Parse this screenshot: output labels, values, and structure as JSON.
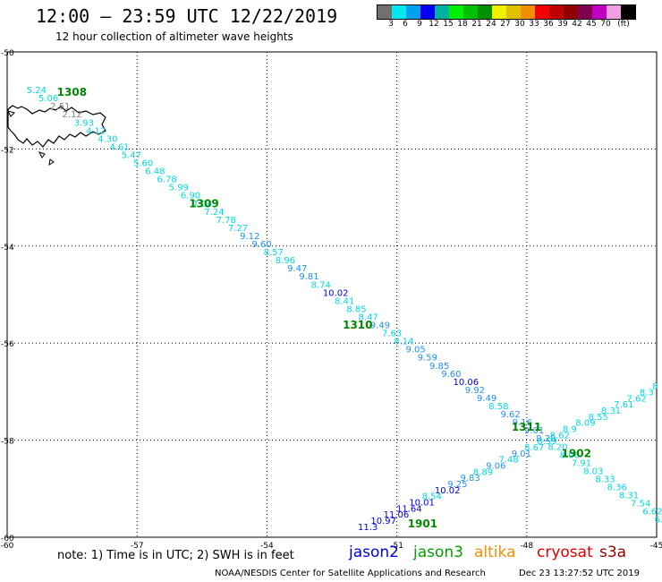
{
  "title": "12:00 – 23:59 UTC 12/22/2019",
  "subtitle": "12 hour collection of altimeter wave heights",
  "colorbar": {
    "colors": [
      "#707070",
      "#00e8f0",
      "#00a0f0",
      "#0000f0",
      "#00b0a0",
      "#00f000",
      "#00c000",
      "#009000",
      "#f0f000",
      "#e0c000",
      "#f09000",
      "#f00000",
      "#c00000",
      "#900000",
      "#800050",
      "#c000c0",
      "#f0a0e0",
      "#000000"
    ],
    "labels": [
      "3",
      "6",
      "9",
      "12",
      "15",
      "18",
      "21",
      "24",
      "27",
      "30",
      "33",
      "36",
      "39",
      "42",
      "45",
      "70",
      "(ft)"
    ]
  },
  "axes": {
    "x_ticks": [
      "-60",
      "-57",
      "-54",
      "-51",
      "-48",
      "-45"
    ],
    "y_ticks": [
      "-50",
      "-52",
      "-54",
      "-56",
      "-58",
      "-60"
    ]
  },
  "chart_data": {
    "type": "map",
    "xlabel": "",
    "ylabel": "",
    "xlim": [
      -60,
      -45
    ],
    "ylim": [
      -60,
      -50
    ],
    "grid": true,
    "passes": [
      {
        "label": "1308",
        "lon": -58.85,
        "lat": -50.9
      },
      {
        "label": "1309",
        "lon": -55.8,
        "lat": -53.2
      },
      {
        "label": "1310",
        "lon": -52.25,
        "lat": -55.7
      },
      {
        "label": "1311",
        "lon": -48.35,
        "lat": -57.8
      },
      {
        "label": "1902",
        "lon": -47.2,
        "lat": -58.35
      },
      {
        "label": "1901",
        "lon": -50.75,
        "lat": -59.8
      }
    ],
    "track_descending": {
      "values": [
        5.24,
        5.06,
        2.51,
        2.12,
        3.93,
        4.12,
        4.3,
        4.61,
        5.47,
        5.6,
        6.48,
        6.78,
        5.99,
        6.9,
        7.04,
        7.24,
        7.78,
        7.27,
        9.12,
        9.6,
        8.57,
        8.96,
        9.47,
        9.81,
        8.74,
        10.02,
        8.41,
        8.85,
        8.47,
        9.49,
        7.63,
        8.14,
        9.05,
        9.59,
        9.85,
        9.6,
        10.06,
        9.92,
        9.49,
        8.58,
        9.62,
        9.16,
        9.01,
        9.2,
        8.2,
        8.06,
        7.91,
        8.03,
        8.33,
        8.36,
        8.31,
        7.54,
        6.62,
        6.4
      ]
    },
    "track_ascending": {
      "values": [
        11.3,
        10.97,
        11.06,
        11.64,
        10.01,
        8.54,
        10.02,
        9.25,
        9.83,
        8.89,
        9.06,
        7.48,
        9.01,
        8.67,
        8.59,
        8.62,
        8.9,
        8.09,
        8.55,
        8.31,
        7.61,
        7.62,
        8.3,
        8
      ]
    }
  },
  "legend": {
    "note": "note:  1) Time is in UTC;  2) SWH is in feet",
    "satellites": [
      {
        "name": "jason2",
        "color": "#0000e0"
      },
      {
        "name": "jason3",
        "color": "#00a000"
      },
      {
        "name": "altika",
        "color": "#f09000"
      },
      {
        "name": "cryosat",
        "color": "#e00000"
      },
      {
        "name": "s3a",
        "color": "#900000"
      }
    ]
  },
  "footer": {
    "credit": "NOAA/NESDIS Center for Satellite Applications and Research",
    "timestamp": "Dec 23 13:27:52 UTC 2019"
  }
}
